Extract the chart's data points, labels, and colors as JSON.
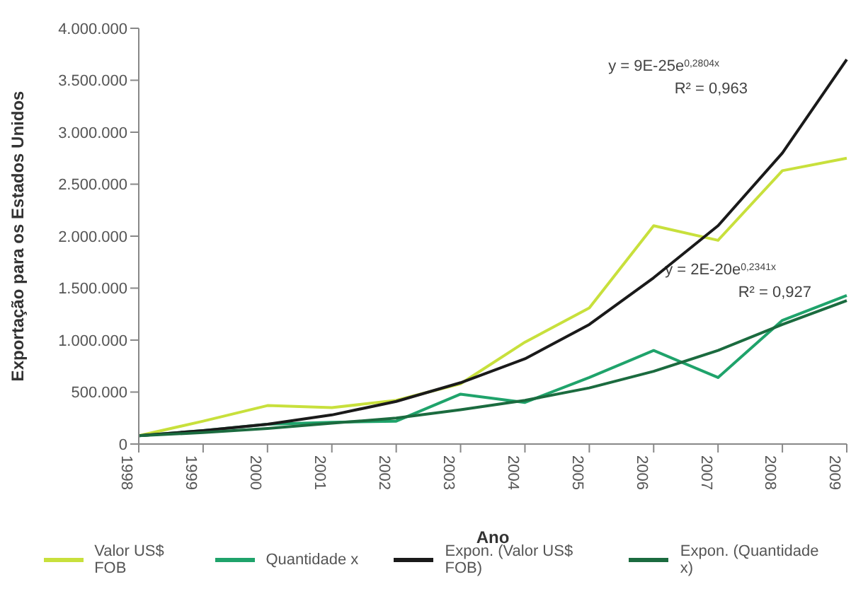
{
  "chart_data": {
    "type": "line",
    "xlabel": "Ano",
    "ylabel": "Exportação para os Estados Unidos",
    "categories": [
      "1998",
      "1999",
      "2000",
      "2001",
      "2002",
      "2003",
      "2004",
      "2005",
      "2006",
      "2007",
      "2008",
      "2009"
    ],
    "series": [
      {
        "name": "Valor US$ FOB",
        "color": "#c8e03c",
        "values": [
          80000,
          220000,
          370000,
          350000,
          420000,
          580000,
          980000,
          1310000,
          2100000,
          1960000,
          2630000,
          2750000
        ]
      },
      {
        "name": "Quantidade x",
        "color": "#1fa36b",
        "values": [
          80000,
          130000,
          190000,
          210000,
          220000,
          480000,
          400000,
          640000,
          900000,
          640000,
          1190000,
          1430000
        ]
      },
      {
        "name": "Expon. (Valor US$ FOB)",
        "color": "#1a1a1a",
        "values": [
          80000,
          130000,
          190000,
          280000,
          410000,
          590000,
          820000,
          1150000,
          1600000,
          2100000,
          2800000,
          3700000
        ]
      },
      {
        "name": "Expon. (Quantidade x)",
        "color": "#1b6b3f",
        "values": [
          80000,
          110000,
          150000,
          200000,
          250000,
          330000,
          420000,
          540000,
          700000,
          900000,
          1150000,
          1380000
        ]
      }
    ],
    "ylim": [
      0,
      4000000
    ],
    "yticks": [
      {
        "value": 0,
        "label": "0"
      },
      {
        "value": 500000,
        "label": "500.000"
      },
      {
        "value": 1000000,
        "label": "1.000.000"
      },
      {
        "value": 1500000,
        "label": "1.500.000"
      },
      {
        "value": 2000000,
        "label": "2.000.000"
      },
      {
        "value": 2500000,
        "label": "2.500.000"
      },
      {
        "value": 3000000,
        "label": "3.000.000"
      },
      {
        "value": 3500000,
        "label": "3.500.000"
      },
      {
        "value": 4000000,
        "label": "4.000.000"
      }
    ],
    "annotations": [
      "y = 9E-25e$^{0,2804x}$",
      "R² = 0,963",
      "y = 2E-20e$^{0,2341x}$",
      "R² = 0,927"
    ],
    "grid": false,
    "legend": "bottom",
    "marker": "none",
    "line_style": "solid"
  }
}
